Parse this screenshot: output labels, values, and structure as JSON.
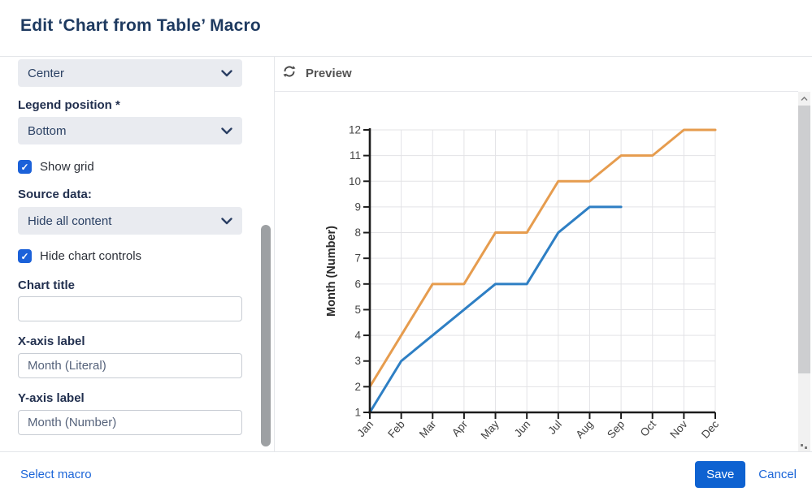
{
  "window": {
    "title": "Edit ‘Chart from Table’ Macro"
  },
  "sidebar": {
    "alignment_select": {
      "value": "Center"
    },
    "legend_position": {
      "label": "Legend position *",
      "select_value": "Bottom"
    },
    "show_grid": {
      "label": "Show grid",
      "checked": true
    },
    "source_data": {
      "label": "Source data:",
      "select_value": "Hide all content"
    },
    "hide_chart_controls": {
      "label": "Hide chart controls",
      "checked": true
    },
    "chart_title": {
      "label": "Chart title",
      "value": ""
    },
    "x_axis": {
      "label": "X-axis label",
      "value": "Month (Literal)"
    },
    "y_axis": {
      "label": "Y-axis label",
      "value": "Month (Number)"
    }
  },
  "preview": {
    "header": "Preview"
  },
  "footer": {
    "select_macro_link": "Select macro",
    "save_button": "Save",
    "cancel_link": "Cancel"
  },
  "icons": {
    "check_glyph": "✓"
  },
  "colors": {
    "title_navy": "#1e3a60",
    "checkbox_blue": "#1b61d9",
    "link_blue": "#1b65d8",
    "save_blue": "#0e62d1",
    "series_blue": "#2e7fc4",
    "series_orange": "#e69c4e",
    "select_bg": "#e9ebf0"
  },
  "chart_data": {
    "type": "line",
    "categories": [
      "Jan",
      "Feb",
      "Mar",
      "Apr",
      "May",
      "Jun",
      "Jul",
      "Aug",
      "Sep",
      "Oct",
      "Nov",
      "Dec"
    ],
    "series": [
      {
        "name": "blue-series",
        "color": "#2e7fc4",
        "values": [
          1,
          3,
          4,
          5,
          6,
          6,
          8,
          9,
          9,
          null,
          null,
          null
        ]
      },
      {
        "name": "orange-series",
        "color": "#e69c4e",
        "values": [
          2,
          4,
          6,
          6,
          8,
          8,
          10,
          10,
          11,
          11,
          12,
          12
        ]
      }
    ],
    "title": "",
    "xlabel": "",
    "ylabel": "Month (Number)",
    "ylim": [
      1,
      12
    ],
    "yticks": [
      1,
      2,
      3,
      4,
      5,
      6,
      7,
      8,
      9,
      10,
      11,
      12
    ],
    "grid": true,
    "legend_position": "bottom",
    "legend_visible": false
  }
}
